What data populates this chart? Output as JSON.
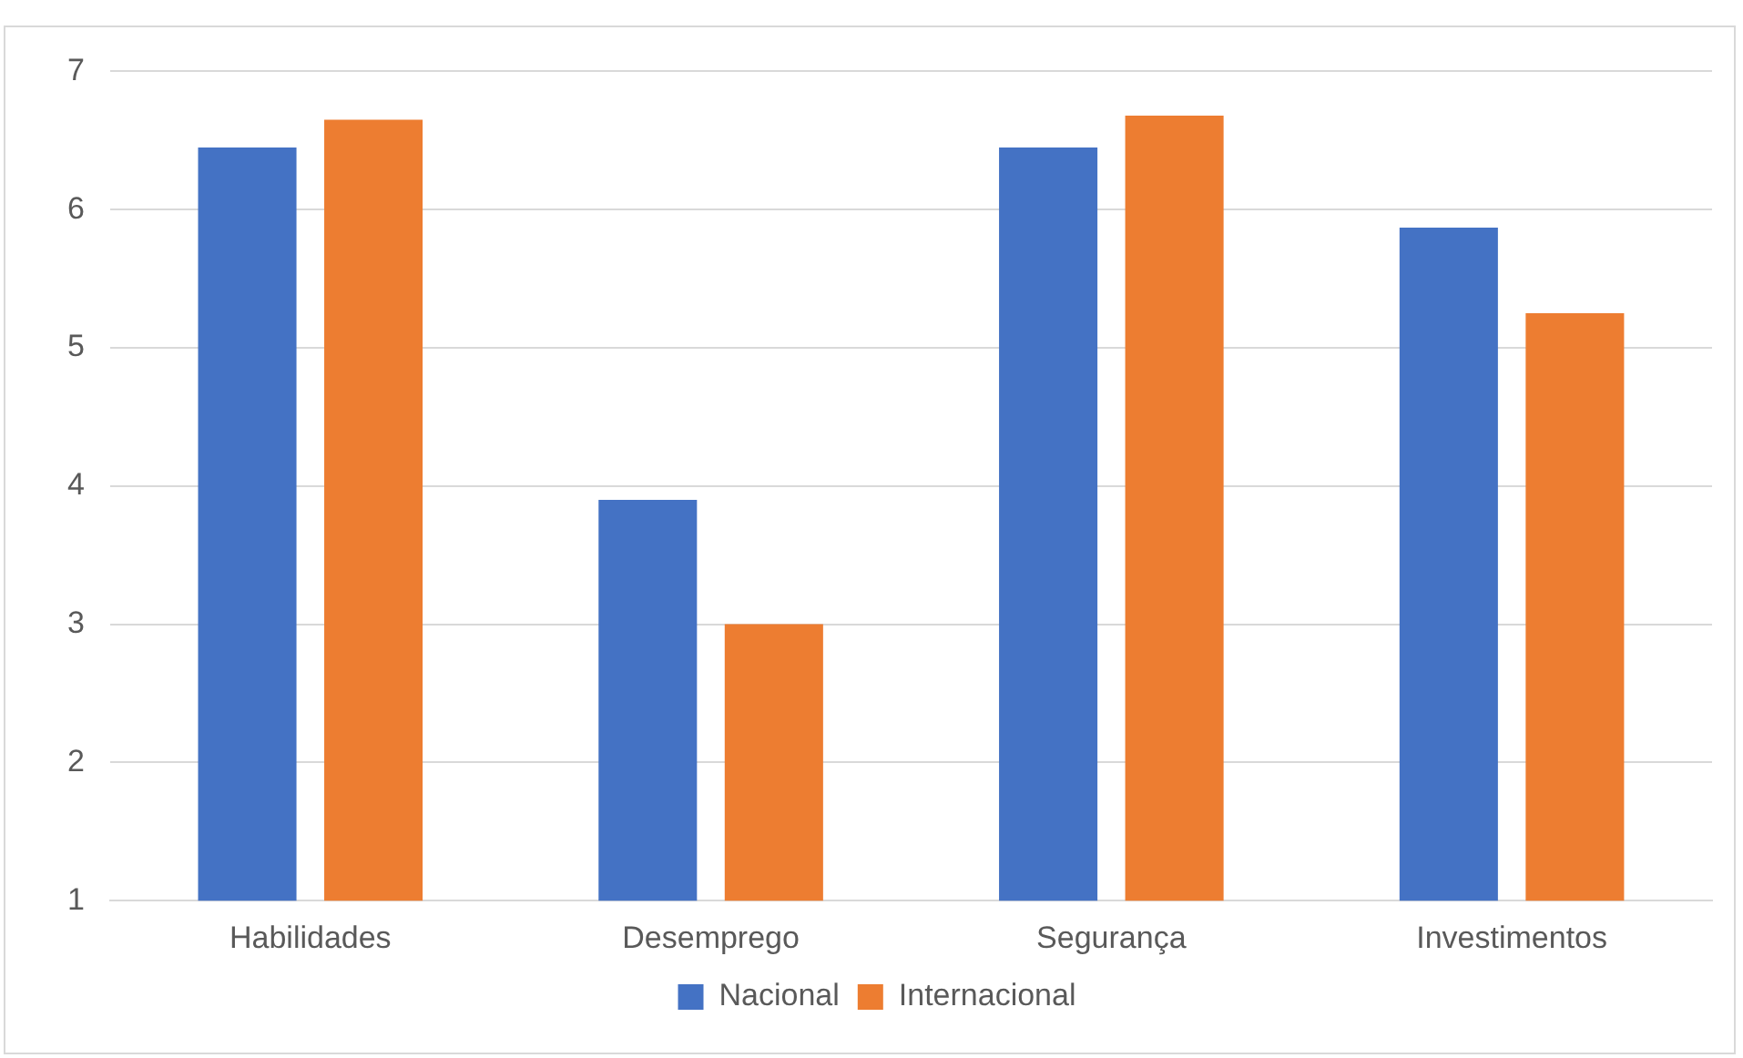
{
  "chart_data": {
    "type": "bar",
    "categories": [
      "Habilidades",
      "Desemprego",
      "Segurança",
      "Investimentos"
    ],
    "series": [
      {
        "name": "Nacional",
        "color": "#4472c4",
        "values": [
          6.45,
          3.9,
          6.45,
          5.87
        ]
      },
      {
        "name": "Internacional",
        "color": "#ed7d31",
        "values": [
          6.65,
          3.0,
          6.68,
          5.25
        ]
      }
    ],
    "ylim": [
      1,
      7
    ],
    "yticks": [
      1,
      2,
      3,
      4,
      5,
      6,
      7
    ],
    "grid": "y",
    "legend": "bottom"
  }
}
